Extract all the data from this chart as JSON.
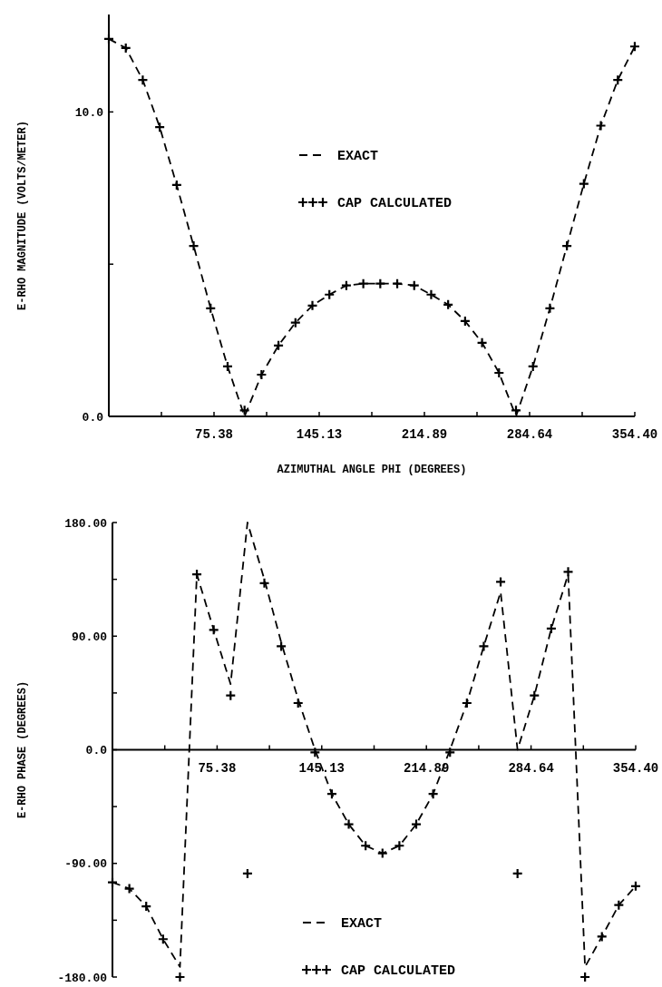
{
  "chart_data": [
    {
      "type": "line",
      "xlabel": "AZIMUTHAL ANGLE PHI (DEGREES)",
      "ylabel": "E-RHO MAGNITUDE (VOLTS/METER)",
      "legend": "top",
      "xlim": [
        5.62,
        354.4
      ],
      "ylim": [
        0,
        13.2
      ],
      "xticks": [
        {
          "value": 40.5,
          "label": null
        },
        {
          "value": 75.38,
          "label": "75.38"
        },
        {
          "value": 110.26,
          "label": null
        },
        {
          "value": 145.13,
          "label": "145.13"
        },
        {
          "value": 180.01,
          "label": null
        },
        {
          "value": 214.89,
          "label": "214.89"
        },
        {
          "value": 249.77,
          "label": null
        },
        {
          "value": 284.64,
          "label": "284.64"
        },
        {
          "value": 319.52,
          "label": null
        },
        {
          "value": 354.4,
          "label": "354.40"
        }
      ],
      "yticks": [
        {
          "value": 0,
          "label": "0.0"
        },
        {
          "value": 5,
          "label": null
        },
        {
          "value": 10,
          "label": "10.0"
        }
      ],
      "x": [
        5.625,
        16.875,
        28.125,
        39.375,
        50.625,
        61.875,
        73.125,
        84.375,
        95.625,
        106.875,
        118.125,
        129.375,
        140.625,
        151.875,
        163.125,
        174.375,
        185.625,
        196.875,
        208.125,
        219.375,
        230.625,
        241.875,
        253.125,
        264.375,
        275.625,
        286.875,
        298.125,
        309.375,
        320.625,
        331.875,
        343.125,
        354.375
      ],
      "series": [
        {
          "name": "EXACT",
          "type": "line",
          "color": "#000000",
          "line_style": "dashed",
          "marker": "none",
          "values": [
            12.4,
            12.1,
            11.05,
            9.5,
            7.6,
            5.6,
            3.55,
            1.64,
            0,
            1.37,
            2.33,
            3.08,
            3.64,
            4.0,
            4.3,
            4.36,
            4.36,
            4.36,
            4.3,
            4.0,
            3.67,
            3.13,
            2.42,
            1.43,
            0,
            1.64,
            3.55,
            5.6,
            7.64,
            9.55,
            11.05,
            12.15
          ]
        },
        {
          "name": "CAP CALCULATED",
          "type": "scatter",
          "color": "#000000",
          "marker": "cross",
          "values": [
            12.4,
            12.1,
            11.05,
            9.5,
            7.6,
            5.6,
            3.55,
            1.64,
            0.2,
            1.37,
            2.33,
            3.08,
            3.64,
            4.0,
            4.3,
            4.36,
            4.36,
            4.36,
            4.3,
            4.0,
            3.67,
            3.13,
            2.42,
            1.43,
            0.2,
            1.64,
            3.55,
            5.6,
            7.64,
            9.55,
            11.05,
            12.15
          ]
        }
      ]
    },
    {
      "type": "line",
      "ylabel": "E-RHO PHASE (DEGREES)",
      "legend": "bottom",
      "xlim": [
        5.62,
        354.4
      ],
      "ylim": [
        -180,
        180
      ],
      "xticks": [
        {
          "value": 40.5,
          "label": null
        },
        {
          "value": 75.38,
          "label": "75.38"
        },
        {
          "value": 110.26,
          "label": null
        },
        {
          "value": 145.13,
          "label": "145.13"
        },
        {
          "value": 180.01,
          "label": null
        },
        {
          "value": 214.89,
          "label": "214.89"
        },
        {
          "value": 249.77,
          "label": null
        },
        {
          "value": 284.64,
          "label": "284.64"
        },
        {
          "value": 319.52,
          "label": null
        },
        {
          "value": 354.4,
          "label": "354.40"
        }
      ],
      "yticks": [
        {
          "value": -180,
          "label": "-180.00"
        },
        {
          "value": -135,
          "label": null
        },
        {
          "value": -90,
          "label": "-90.00"
        },
        {
          "value": -45,
          "label": null
        },
        {
          "value": 0,
          "label": "0.0"
        },
        {
          "value": 45,
          "label": null
        },
        {
          "value": 90,
          "label": "90.00"
        },
        {
          "value": 135,
          "label": null
        },
        {
          "value": 180,
          "label": "180.00"
        }
      ],
      "x": [
        5.625,
        16.875,
        28.125,
        39.375,
        50.625,
        61.875,
        73.125,
        84.375,
        95.625,
        106.875,
        118.125,
        129.375,
        140.625,
        151.875,
        163.125,
        174.375,
        185.625,
        196.875,
        208.125,
        219.375,
        230.625,
        241.875,
        253.125,
        264.375,
        275.625,
        286.875,
        298.125,
        309.375,
        320.625,
        331.875,
        343.125,
        354.375
      ],
      "series": [
        {
          "name": "EXACT",
          "type": "line",
          "color": "#000000",
          "line_style": "dashed",
          "marker": "none",
          "values": [
            -105,
            -110,
            -124,
            -150,
            -172,
            139,
            95,
            52,
            180,
            135,
            85,
            40,
            0,
            -35,
            -59,
            -76,
            -82,
            -76,
            -59,
            -35,
            0,
            37,
            82,
            125,
            0,
            43,
            96,
            139,
            -172,
            -148,
            -123,
            -108
          ]
        },
        {
          "name": "CAP CALCULATED",
          "type": "scatter",
          "color": "#000000",
          "marker": "cross",
          "values": [
            -105,
            -110,
            -124,
            -150,
            -180,
            139,
            95,
            43,
            -98,
            132,
            82,
            37,
            -2,
            -35,
            -59,
            -76,
            -82,
            -76,
            -59,
            -35,
            -2,
            37,
            82,
            133,
            -98,
            43,
            96,
            141,
            -180,
            -148,
            -123,
            -108
          ]
        }
      ]
    }
  ]
}
